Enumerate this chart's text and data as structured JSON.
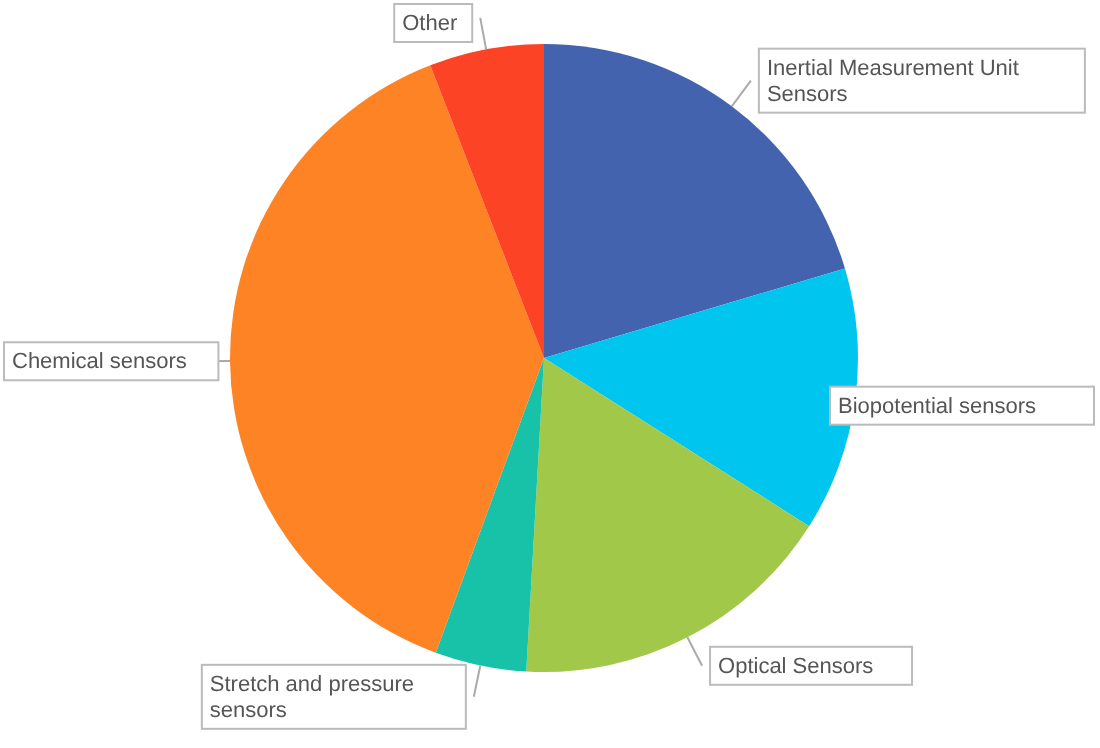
{
  "chart_data": {
    "type": "pie",
    "categories": [
      "Inertial Measurement Unit Sensors",
      "Biopotential sensors",
      "Optical Sensors",
      "Stretch and pressure sensors",
      "Chemical sensors",
      "Other"
    ],
    "values": [
      20.4,
      13.6,
      16.9,
      4.7,
      38.5,
      5.9
    ],
    "colors": [
      "#4463ae",
      "#00c5ee",
      "#a2c84a",
      "#18c2a8",
      "#fe8325",
      "#fc4325"
    ]
  }
}
